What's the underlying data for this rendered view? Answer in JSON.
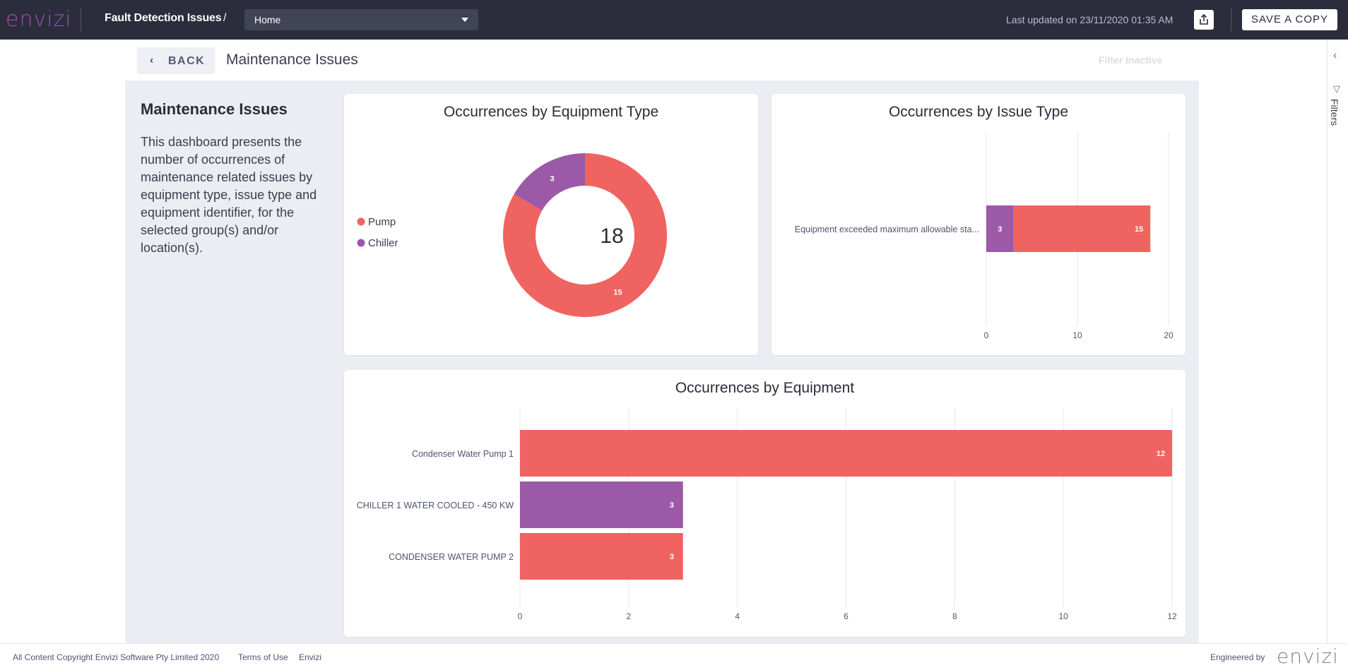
{
  "header": {
    "logo": "envizi",
    "breadcrumb": "Fault Detection Issues",
    "separator": "/",
    "dashboard_select": "Home",
    "last_updated": "Last updated on 23/11/2020 01:35 AM",
    "save_copy": "SAVE A COPY"
  },
  "subheader": {
    "back": "BACK",
    "title": "Maintenance Issues",
    "filter_status": "Filter Inactive"
  },
  "rail": {
    "filters_label": "Filters"
  },
  "intro": {
    "title": "Maintenance Issues",
    "body": "This dashboard presents the number of occurrences of maintenance related issues by equipment type, issue type and equipment identifier, for the selected group(s) and/or location(s)."
  },
  "colors": {
    "pump": "#ef6360",
    "chiller": "#9b59a8",
    "accent": "#9b4fa8",
    "topbar": "#2b2d3c"
  },
  "chart_data": [
    {
      "type": "pie",
      "title": "Occurrences by Equipment Type",
      "center_label": "18",
      "legend": [
        "Pump",
        "Chiller"
      ],
      "slices": [
        {
          "label": "Pump",
          "value": 15,
          "color": "#ef6360"
        },
        {
          "label": "Chiller",
          "value": 3,
          "color": "#9b59a8"
        }
      ]
    },
    {
      "type": "bar",
      "orientation": "horizontal",
      "stacked": true,
      "title": "Occurrences by Issue Type",
      "categories": [
        "Equipment exceeded maximum allowable sta..."
      ],
      "series": [
        {
          "name": "Chiller",
          "values": [
            3
          ],
          "color": "#9b59a8"
        },
        {
          "name": "Pump",
          "values": [
            15
          ],
          "color": "#ef6360"
        }
      ],
      "xlim": [
        0,
        20
      ],
      "ticks": [
        "0",
        "10",
        "20"
      ]
    },
    {
      "type": "bar",
      "orientation": "horizontal",
      "title": "Occurrences by Equipment",
      "categories": [
        "Condenser Water Pump 1",
        "CHILLER 1 WATER COOLED - 450 KW",
        "CONDENSER WATER PUMP 2"
      ],
      "values": [
        12,
        3,
        3
      ],
      "colors": [
        "#ef6360",
        "#9b59a8",
        "#ef6360"
      ],
      "xlim": [
        0,
        12
      ],
      "ticks": [
        "0",
        "2",
        "4",
        "6",
        "8",
        "10",
        "12"
      ]
    }
  ],
  "footer": {
    "copyright": "All Content Copyright Envizi Software Pty Limited 2020",
    "terms": "Terms of Use",
    "envizi_link": "Envizi",
    "engineered_by": "Engineered by",
    "logo": "envizi"
  }
}
